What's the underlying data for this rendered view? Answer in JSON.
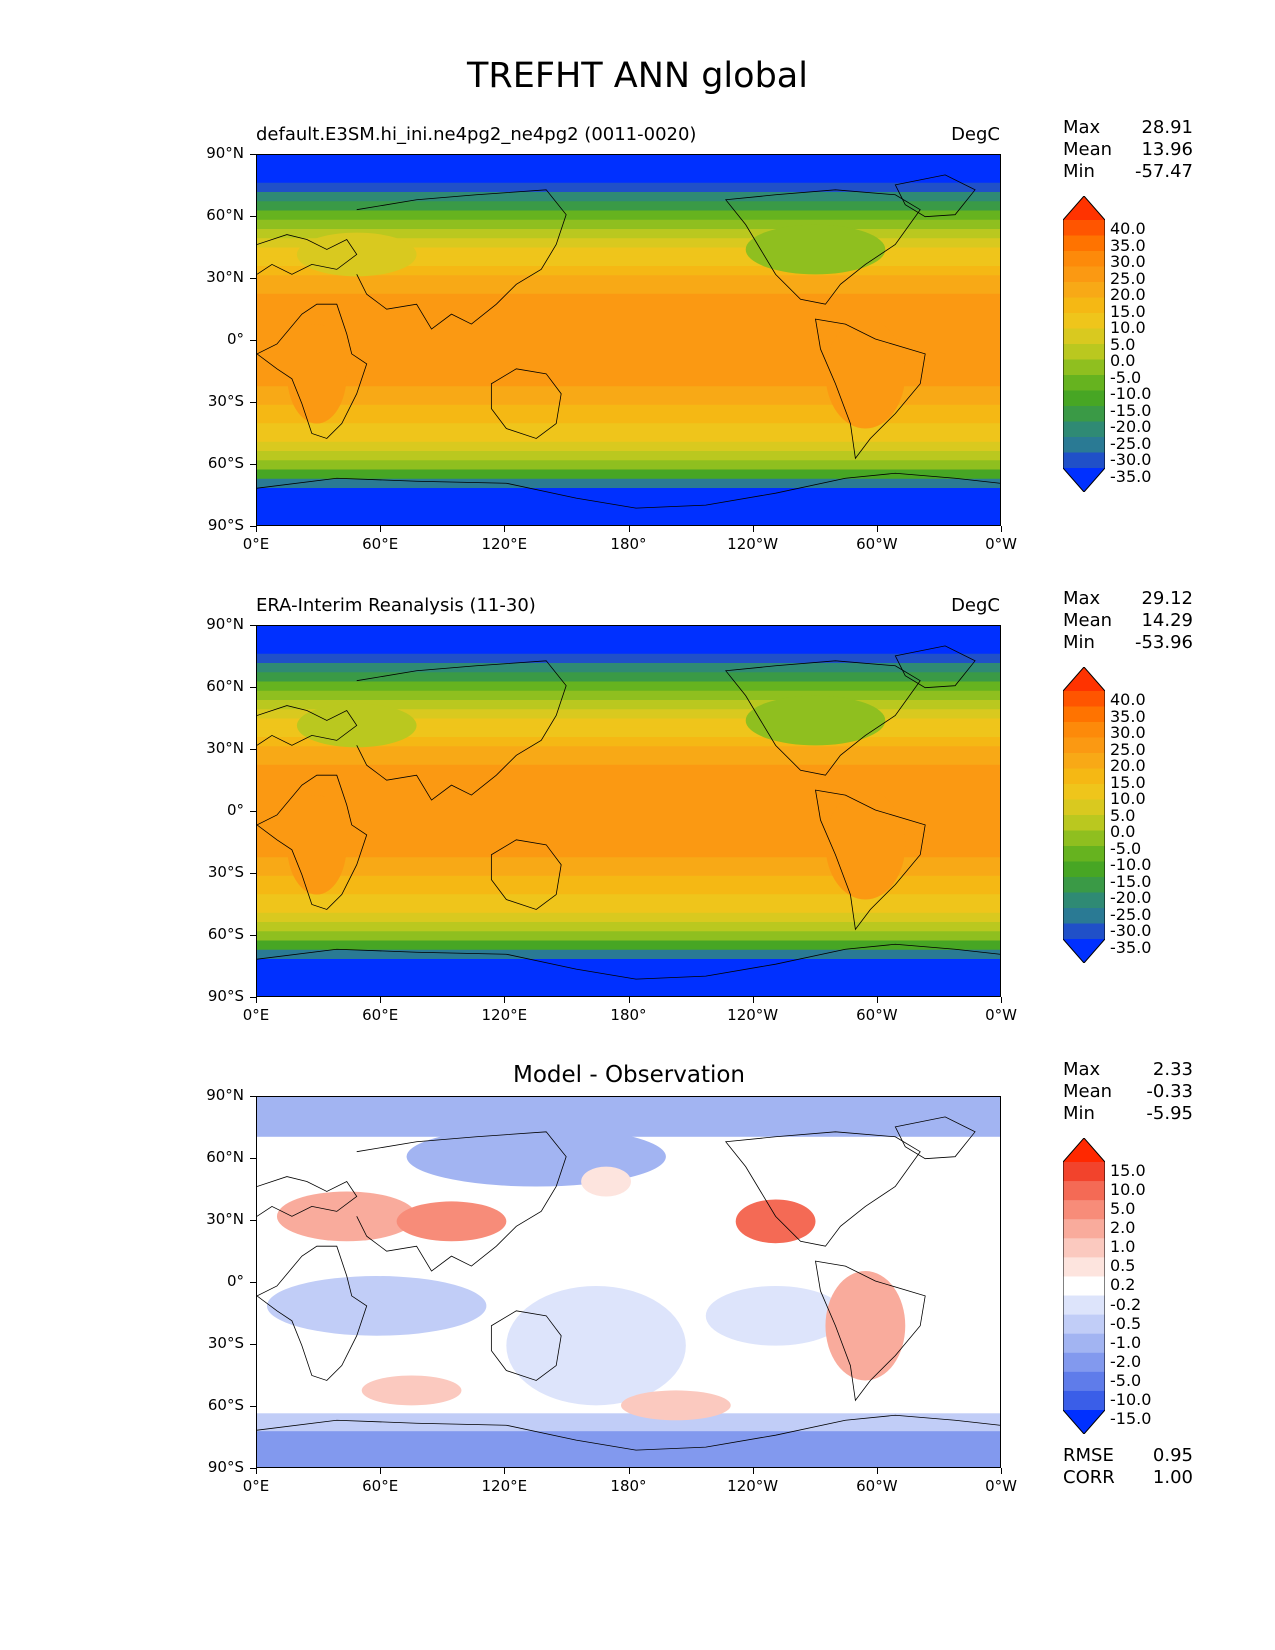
{
  "figure": {
    "title": "TREFHT ANN global"
  },
  "axes": {
    "lat_labels": [
      "90°N",
      "60°N",
      "30°N",
      "0°",
      "30°S",
      "60°S",
      "90°S"
    ],
    "lon_labels": [
      "0°E",
      "60°E",
      "120°E",
      "180°",
      "120°W",
      "60°W",
      "0°W"
    ]
  },
  "panels": [
    {
      "id": "model",
      "title_left": "default.E3SM.hi_ini.ne4pg2_ne4pg2 (0011-0020)",
      "title_right": "DegC",
      "title_center": "",
      "stats": [
        {
          "label": "Max",
          "value": "28.91"
        },
        {
          "label": "Mean",
          "value": "13.96"
        },
        {
          "label": "Min",
          "value": "-57.47"
        }
      ],
      "extra_stats": [],
      "colorbar": {
        "labels": [
          "40.0",
          "35.0",
          "30.0",
          "25.0",
          "20.0",
          "15.0",
          "10.0",
          "5.0",
          "0.0",
          "-5.0",
          "-10.0",
          "-15.0",
          "-20.0",
          "-25.0",
          "-30.0",
          "-35.0"
        ],
        "colors": [
          "#ff3300",
          "#ff5500",
          "#ff7300",
          "#fd8a0a",
          "#fb9912",
          "#f8a916",
          "#f5b814",
          "#efc51b",
          "#d9c91f",
          "#bac81f",
          "#8fbf1f",
          "#66b31f",
          "#47a624",
          "#3a9a46",
          "#2f8a74",
          "#2a7a94",
          "#2050c8",
          "#0030ff"
        ],
        "bottom_arrow": "#0030ff"
      }
    },
    {
      "id": "observation",
      "title_left": "ERA-Interim Reanalysis (11-30)",
      "title_right": "DegC",
      "title_center": "",
      "stats": [
        {
          "label": "Max",
          "value": "29.12"
        },
        {
          "label": "Mean",
          "value": "14.29"
        },
        {
          "label": "Min",
          "value": "-53.96"
        }
      ],
      "extra_stats": [],
      "colorbar": {
        "labels": [
          "40.0",
          "35.0",
          "30.0",
          "25.0",
          "20.0",
          "15.0",
          "10.0",
          "5.0",
          "0.0",
          "-5.0",
          "-10.0",
          "-15.0",
          "-20.0",
          "-25.0",
          "-30.0",
          "-35.0"
        ],
        "colors": [
          "#ff3300",
          "#ff5500",
          "#ff7300",
          "#fd8a0a",
          "#fb9912",
          "#f8a916",
          "#f5b814",
          "#efc51b",
          "#d9c91f",
          "#bac81f",
          "#8fbf1f",
          "#66b31f",
          "#47a624",
          "#3a9a46",
          "#2f8a74",
          "#2a7a94",
          "#2050c8",
          "#0030ff"
        ],
        "bottom_arrow": "#0030ff"
      }
    },
    {
      "id": "difference",
      "title_left": "",
      "title_right": "",
      "title_center": "Model - Observation",
      "stats": [
        {
          "label": "Max",
          "value": "2.33"
        },
        {
          "label": "Mean",
          "value": "-0.33"
        },
        {
          "label": "Min",
          "value": "-5.95"
        }
      ],
      "extra_stats": [
        {
          "label": "RMSE",
          "value": "0.95"
        },
        {
          "label": "CORR",
          "value": "1.00"
        }
      ],
      "colorbar": {
        "labels": [
          "15.0",
          "10.0",
          "5.0",
          "2.0",
          "1.0",
          "0.5",
          "0.2",
          "-0.2",
          "-0.5",
          "-1.0",
          "-2.0",
          "-5.0",
          "-10.0",
          "-15.0"
        ],
        "colors": [
          "#ff2800",
          "#f2432c",
          "#f46a55",
          "#f78c79",
          "#f9ab9c",
          "#fbc9bf",
          "#fde4de",
          "#ffffff",
          "#dde4fb",
          "#c1cdf7",
          "#a2b4f2",
          "#8299ee",
          "#5f7cea",
          "#3a5ee8",
          "#0030ff"
        ],
        "bottom_arrow": "#0030ff"
      }
    }
  ]
}
